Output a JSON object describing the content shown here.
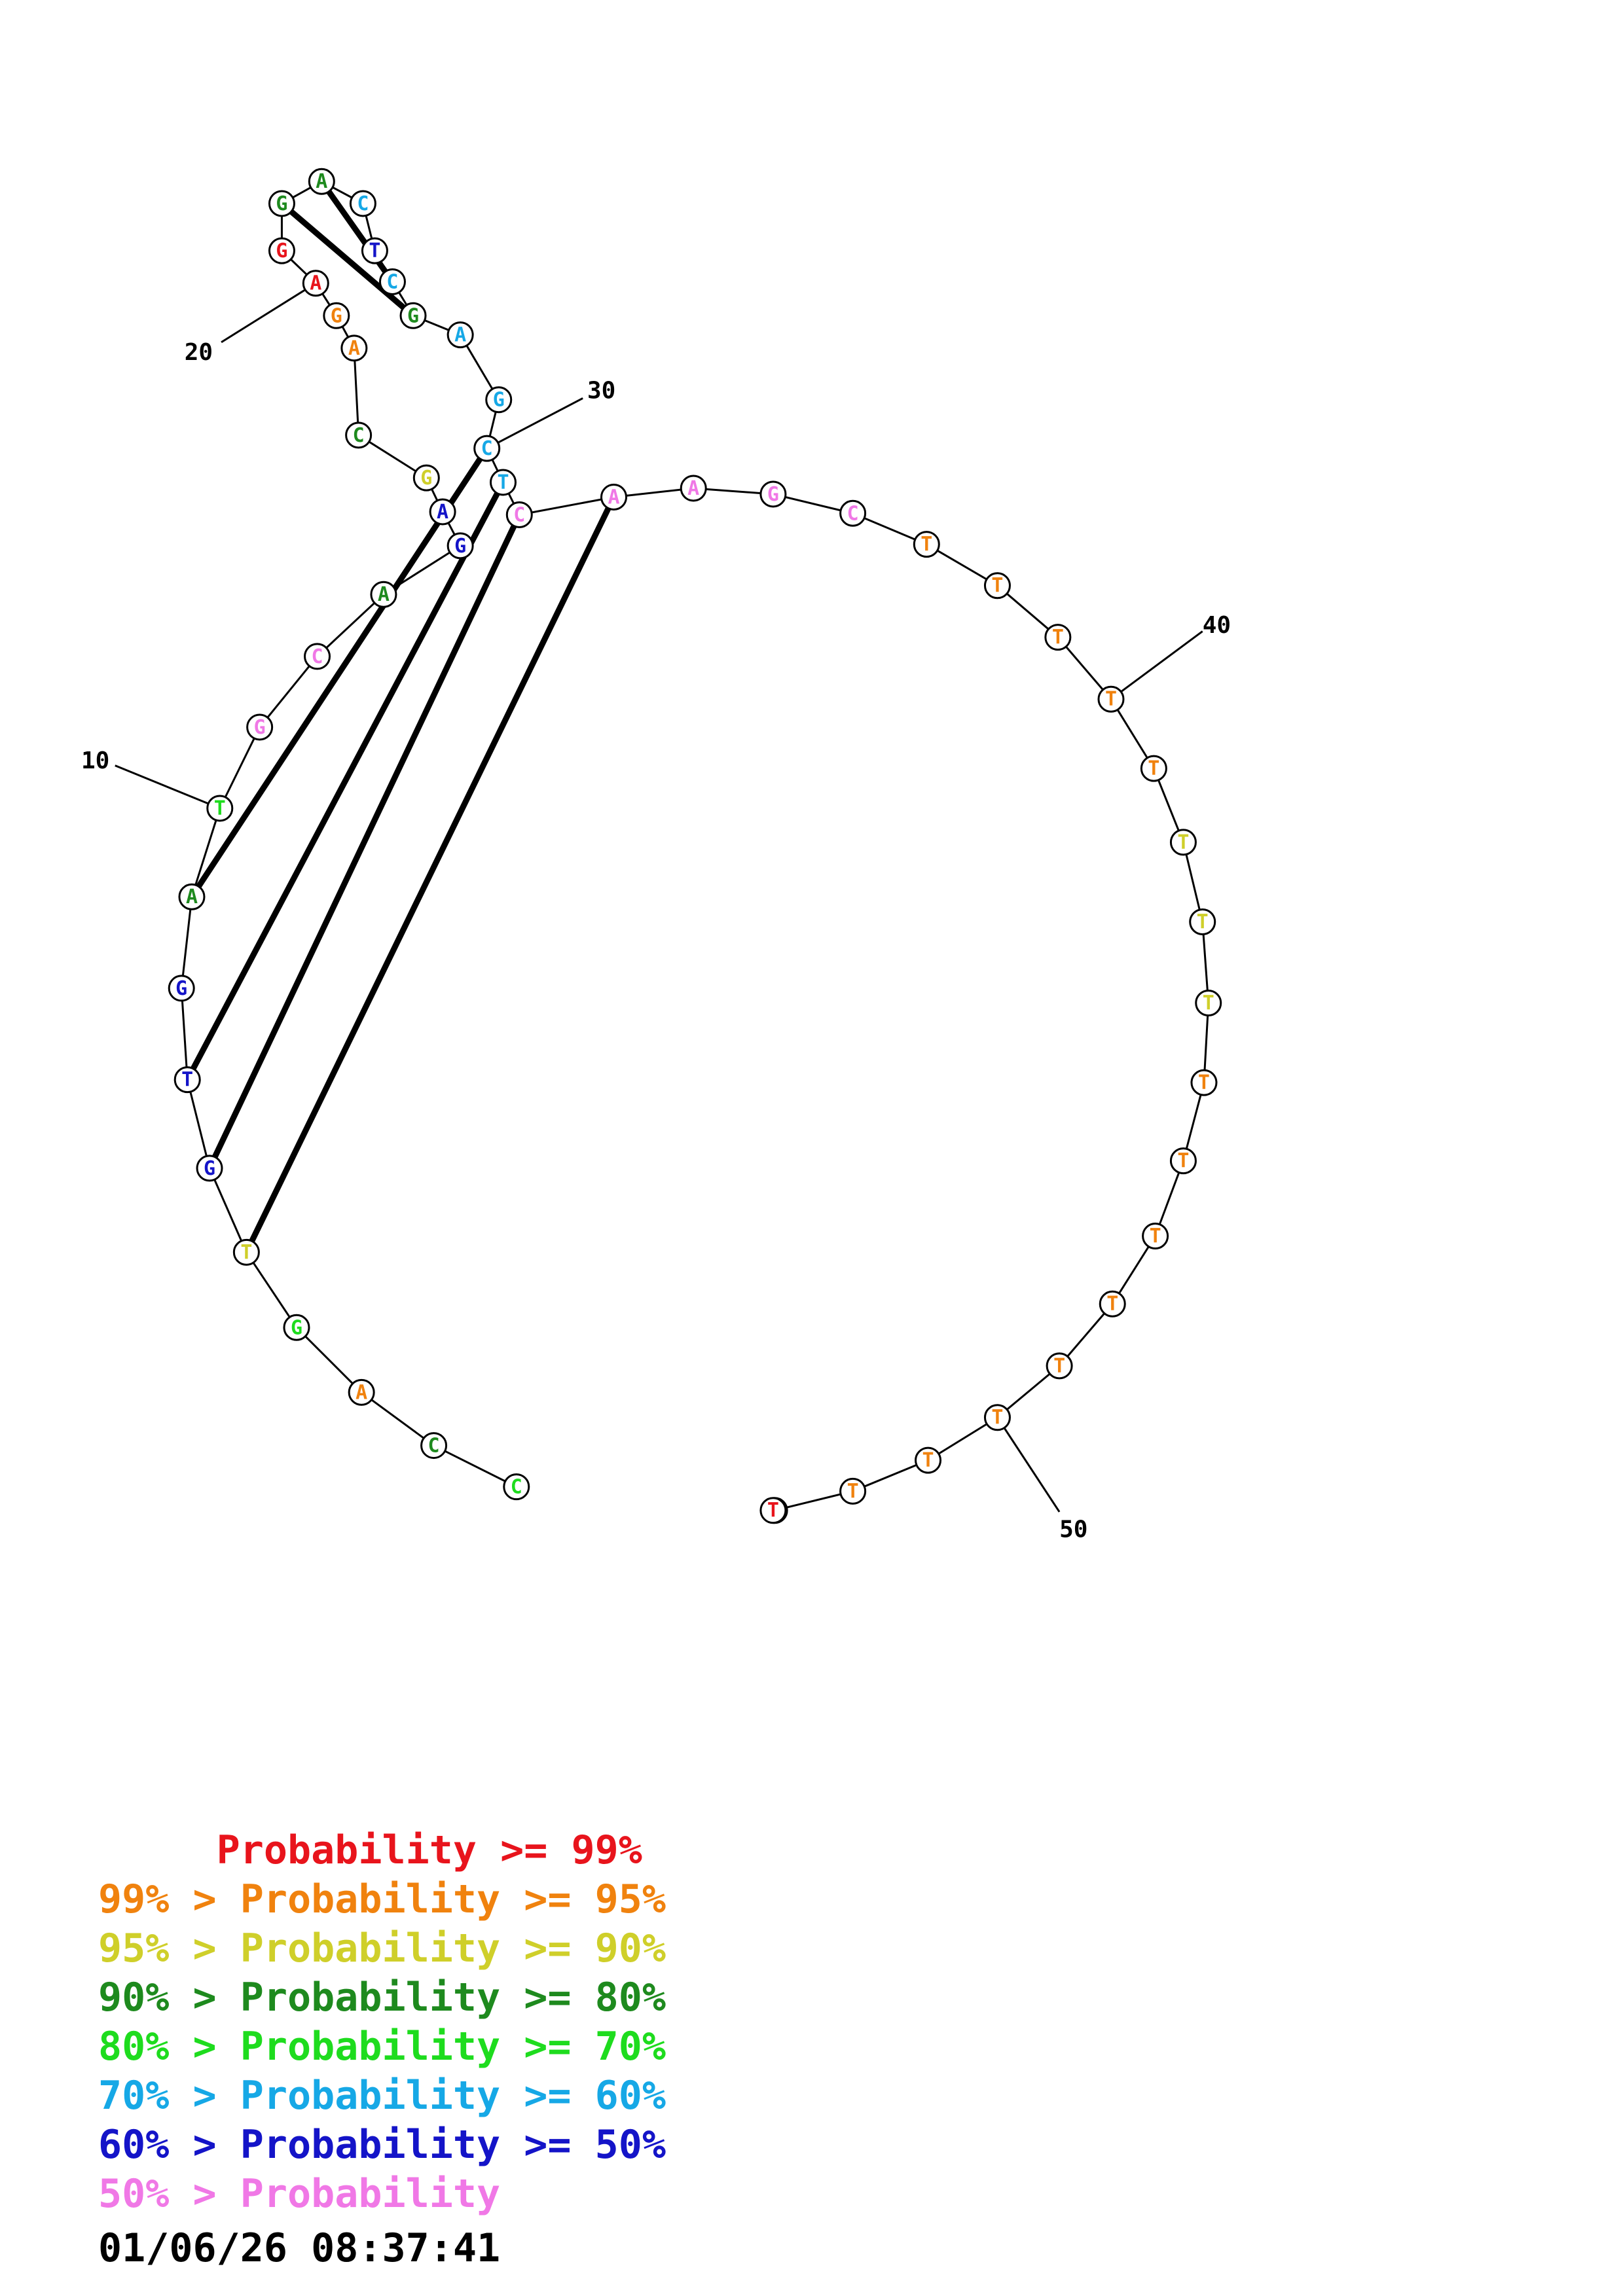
{
  "structure": {
    "sequence": [
      "C",
      "C",
      "A",
      "G",
      "T",
      "G",
      "T",
      "G",
      "A",
      "T",
      "G",
      "C",
      "A",
      "G",
      "A",
      "G",
      "C",
      "A",
      "G",
      "A",
      "G",
      "G",
      "A",
      "C",
      "T",
      "C",
      "G",
      "A",
      "G",
      "C",
      "T",
      "C",
      "A",
      "A",
      "G",
      "C",
      "T",
      "T",
      "T",
      "T",
      "T",
      "T",
      "T",
      "T",
      "T",
      "T",
      "T",
      "T",
      "T",
      "T",
      "T",
      "T",
      "T",
      "T",
      "T"
    ],
    "pairs": [
      [
        4,
        32
      ],
      [
        5,
        31
      ],
      [
        6,
        30
      ],
      [
        8,
        29
      ],
      [
        21,
        26
      ],
      [
        22,
        25
      ]
    ],
    "pair_notes": "0-based indices; pairs drawn with thick lines",
    "position_labels": [
      {
        "index": 10,
        "text": "10"
      },
      {
        "index": 20,
        "text": "20"
      },
      {
        "index": 30,
        "text": "30"
      },
      {
        "index": 40,
        "text": "40"
      },
      {
        "index": 50,
        "text": "50"
      }
    ],
    "probability_levels": [
      4,
      3,
      1,
      4,
      2,
      6,
      6,
      6,
      3,
      4,
      7,
      7,
      3,
      6,
      6,
      2,
      3,
      1,
      1,
      0,
      0,
      3,
      3,
      5,
      6,
      5,
      3,
      5,
      5,
      5,
      5,
      7,
      7,
      7,
      7,
      7,
      1,
      1,
      1,
      1,
      1,
      2,
      2,
      2,
      1,
      1,
      1,
      1,
      1,
      1,
      1,
      1,
      1,
      0,
      0
    ]
  },
  "colors": {
    "levels": [
      "#e8141c",
      "#f0820e",
      "#cfcf2a",
      "#1e8a1e",
      "#1edc1e",
      "#16a8e6",
      "#1414c8",
      "#f078e6"
    ]
  },
  "legend": [
    {
      "text": "     Probability >= 99%",
      "level": 0
    },
    {
      "text": "99% > Probability >= 95%",
      "level": 1
    },
    {
      "text": "95% > Probability >= 90%",
      "level": 2
    },
    {
      "text": "90% > Probability >= 80%",
      "level": 3
    },
    {
      "text": "80% > Probability >= 70%",
      "level": 4
    },
    {
      "text": "70% > Probability >= 60%",
      "level": 5
    },
    {
      "text": "60% > Probability >= 50%",
      "level": 6
    },
    {
      "text": "50% > Probability",
      "level": 7
    }
  ],
  "timestamp": "01/06/26 08:37:41"
}
